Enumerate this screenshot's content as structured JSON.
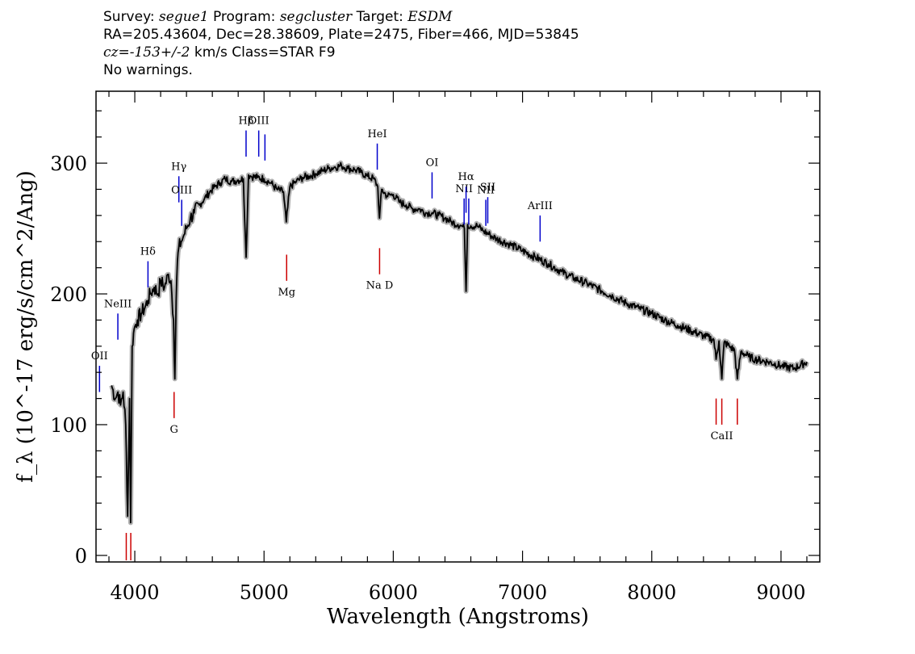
{
  "header": {
    "survey_label": "Survey:",
    "survey": "segue1",
    "program_label": "Program:",
    "program": "segcluster",
    "target_label": "Target:",
    "target": "ESDM",
    "line2": "RA=205.43604, Dec=28.38609, Plate=2475, Fiber=466, MJD=53845",
    "cz_label": "cz=",
    "cz_value": "-153+/-2",
    "cz_rest": " km/s Class=STAR F9",
    "warnings": "No warnings."
  },
  "chart_data": {
    "type": "line",
    "xlabel": "Wavelength (Angstroms)",
    "ylabel": "f_λ (10^-17 erg/s/cm^2/Ang)",
    "xlim": [
      3700,
      9300
    ],
    "ylim": [
      -5,
      355
    ],
    "x_ticks": [
      4000,
      5000,
      6000,
      7000,
      8000,
      9000
    ],
    "x_tick_labels": [
      "4000",
      "5000",
      "6000",
      "7000",
      "8000",
      "9000"
    ],
    "y_ticks": [
      0,
      100,
      200,
      300
    ],
    "y_tick_labels": [
      "0",
      "100",
      "200",
      "300"
    ],
    "series": [
      {
        "color": "#000000",
        "error_color": "#b0b0b0",
        "x": [
          3820,
          3850,
          3870,
          3890,
          3910,
          3930,
          3945,
          3960,
          3968,
          3980,
          3990,
          4000,
          4020,
          4050,
          4080,
          4102,
          4120,
          4150,
          4180,
          4200,
          4230,
          4260,
          4280,
          4300,
          4310,
          4320,
          4330,
          4340,
          4360,
          4380,
          4400,
          4430,
          4460,
          4500,
          4540,
          4580,
          4620,
          4660,
          4700,
          4750,
          4800,
          4840,
          4861,
          4880,
          4900,
          4950,
          5000,
          5050,
          5100,
          5150,
          5172,
          5200,
          5250,
          5300,
          5350,
          5400,
          5450,
          5500,
          5550,
          5600,
          5650,
          5700,
          5750,
          5800,
          5850,
          5880,
          5893,
          5910,
          5950,
          6000,
          6050,
          6100,
          6150,
          6200,
          6250,
          6300,
          6350,
          6400,
          6450,
          6500,
          6530,
          6550,
          6563,
          6575,
          6600,
          6650,
          6700,
          6750,
          6800,
          6900,
          7000,
          7100,
          7200,
          7300,
          7400,
          7500,
          7600,
          7700,
          7800,
          7900,
          8000,
          8100,
          8200,
          8300,
          8400,
          8480,
          8498,
          8520,
          8542,
          8560,
          8600,
          8640,
          8662,
          8690,
          8750,
          8800,
          8900,
          9000,
          9100,
          9200
        ],
        "values": [
          130,
          120,
          125,
          115,
          125,
          100,
          30,
          120,
          25,
          160,
          170,
          175,
          180,
          185,
          190,
          195,
          200,
          205,
          200,
          210,
          205,
          215,
          210,
          180,
          135,
          195,
          225,
          235,
          240,
          245,
          250,
          258,
          262,
          268,
          273,
          278,
          282,
          285,
          288,
          286,
          287,
          288,
          228,
          291,
          290,
          289,
          288,
          285,
          280,
          278,
          255,
          282,
          286,
          289,
          290,
          292,
          294,
          296,
          297,
          298,
          296,
          295,
          293,
          290,
          288,
          282,
          258,
          280,
          275,
          276,
          270,
          268,
          265,
          265,
          262,
          262,
          260,
          258,
          255,
          253,
          252,
          250,
          202,
          253,
          252,
          252,
          248,
          245,
          242,
          238,
          233,
          228,
          223,
          217,
          212,
          208,
          203,
          198,
          193,
          189,
          185,
          180,
          176,
          172,
          168,
          165,
          150,
          164,
          135,
          163,
          160,
          157,
          135,
          156,
          152,
          150,
          148,
          145,
          143,
          148
        ]
      }
    ],
    "lines": [
      {
        "label": "OII",
        "wave": 3727,
        "flux": 145,
        "color": "#0000cc"
      },
      {
        "label": "NeIII",
        "wave": 3869,
        "flux": 185,
        "color": "#0000cc"
      },
      {
        "label": "Hδ",
        "wave": 4102,
        "flux": 225,
        "color": "#0000cc"
      },
      {
        "label": "Hγ",
        "wave": 4341,
        "flux": 290,
        "color": "#0000cc"
      },
      {
        "label": "OIII",
        "wave": 4363,
        "flux": 272,
        "color": "#0000cc"
      },
      {
        "label": "Hβ",
        "wave": 4861,
        "flux": 325,
        "color": "#0000cc"
      },
      {
        "label": "OIII",
        "wave": 4959,
        "flux": 325,
        "color": "#0000cc"
      },
      {
        "label": "",
        "wave": 5007,
        "flux": 322,
        "color": "#0000cc"
      },
      {
        "label": "HeI",
        "wave": 5876,
        "flux": 315,
        "color": "#0000cc"
      },
      {
        "label": "OI",
        "wave": 6300,
        "flux": 293,
        "color": "#0000cc"
      },
      {
        "label": "NII",
        "wave": 6548,
        "flux": 273,
        "color": "#0000cc"
      },
      {
        "label": "Hα",
        "wave": 6563,
        "flux": 282,
        "color": "#0000cc"
      },
      {
        "label": "",
        "wave": 6584,
        "flux": 273,
        "color": "#0000cc"
      },
      {
        "label": "NII",
        "wave": 6716,
        "flux": 272,
        "color": "#0000cc"
      },
      {
        "label": "SII",
        "wave": 6731,
        "flux": 274,
        "color": "#0000cc"
      },
      {
        "label": "ArIII",
        "wave": 7136,
        "flux": 260,
        "color": "#0000cc"
      },
      {
        "label": "G",
        "wave": 4304,
        "flux": 125,
        "color": "#cc0000"
      },
      {
        "label": "Mg",
        "wave": 5175,
        "flux": 230,
        "color": "#cc0000"
      },
      {
        "label": "Na D",
        "wave": 5894,
        "flux": 235,
        "color": "#cc0000"
      },
      {
        "label": "",
        "wave": 3934,
        "flux": 0,
        "color": "#cc0000"
      },
      {
        "label": "",
        "wave": 3969,
        "flux": 0,
        "color": "#cc0000"
      },
      {
        "label": "CaII",
        "wave": 8542,
        "flux": 120,
        "color": "#cc0000"
      },
      {
        "label": "",
        "wave": 8498,
        "flux": 120,
        "color": "#cc0000"
      },
      {
        "label": "",
        "wave": 8662,
        "flux": 120,
        "color": "#cc0000"
      }
    ]
  }
}
